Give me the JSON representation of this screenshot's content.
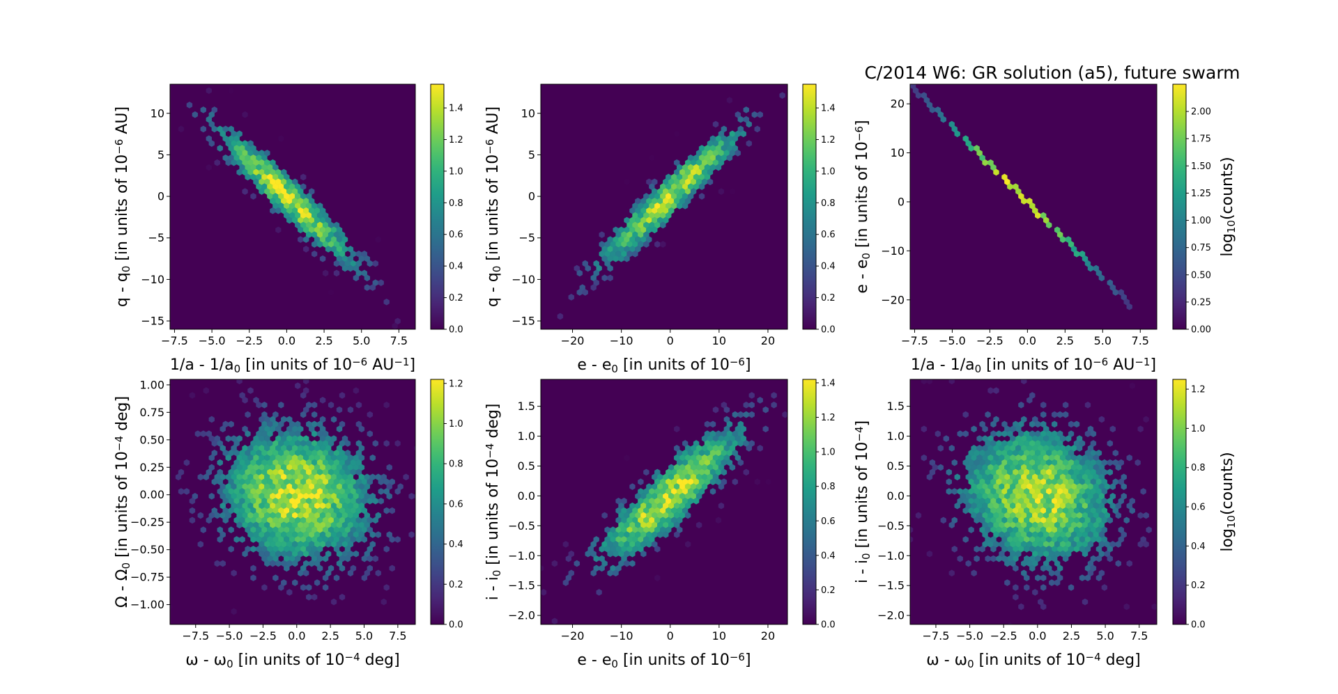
{
  "figure_title": "C/2014 W6: GR solution (a5),  future swarm",
  "colormap": "viridis",
  "background_color": "#440154",
  "chart_data": [
    {
      "type": "heatmap",
      "subtype": "hexbin",
      "xlabel": {
        "main": "1/a - 1/a",
        "sub": "0",
        "tail": " [in units of 10",
        "sup": "−6",
        "end": " AU",
        "sup2": "−1",
        "close": "]"
      },
      "ylabel": {
        "main": "q - q",
        "sub": "0",
        "tail": " [in units of 10",
        "sup": "−6",
        "end": " AU]"
      },
      "xlim": [
        -7.8,
        8.6
      ],
      "ylim": [
        -16.0,
        13.5
      ],
      "xticks": [
        {
          "v": -7.5,
          "label": "−7.5"
        },
        {
          "v": -5.0,
          "label": "−5.0"
        },
        {
          "v": -2.5,
          "label": "−2.5"
        },
        {
          "v": 0,
          "label": "0.0"
        },
        {
          "v": 2.5,
          "label": "2.5"
        },
        {
          "v": 5.0,
          "label": "5.0"
        },
        {
          "v": 7.5,
          "label": "7.5"
        }
      ],
      "yticks": [
        {
          "v": -15,
          "label": "−15"
        },
        {
          "v": -10,
          "label": "−10"
        },
        {
          "v": -5,
          "label": "−5"
        },
        {
          "v": 0,
          "label": "0"
        },
        {
          "v": 5,
          "label": "5"
        },
        {
          "v": 10,
          "label": "10"
        }
      ],
      "distribution": {
        "sx": 2.6,
        "sy": 4.6,
        "rho": -0.95,
        "peak": 1.5
      },
      "colorbar": {
        "label": "",
        "range": [
          0,
          1.55
        ],
        "ticks": [
          {
            "v": 0,
            "label": "0.0"
          },
          {
            "v": 0.2,
            "label": "0.2"
          },
          {
            "v": 0.4,
            "label": "0.4"
          },
          {
            "v": 0.6,
            "label": "0.6"
          },
          {
            "v": 0.8,
            "label": "0.8"
          },
          {
            "v": 1.0,
            "label": "1.0"
          },
          {
            "v": 1.2,
            "label": "1.2"
          },
          {
            "v": 1.4,
            "label": "1.4"
          }
        ]
      }
    },
    {
      "type": "heatmap",
      "subtype": "hexbin",
      "xlabel": {
        "main": "e - e",
        "sub": "0",
        "tail": " [in units of 10",
        "sup": "−6",
        "end": "]"
      },
      "ylabel": {
        "main": "q - q",
        "sub": "0",
        "tail": " [in units of 10",
        "sup": "−6",
        "end": " AU]"
      },
      "xlim": [
        -26.5,
        24.0
      ],
      "ylim": [
        -16.0,
        13.5
      ],
      "xticks": [
        {
          "v": -20,
          "label": "−20"
        },
        {
          "v": -10,
          "label": "−10"
        },
        {
          "v": 0,
          "label": "0"
        },
        {
          "v": 10,
          "label": "10"
        },
        {
          "v": 20,
          "label": "20"
        }
      ],
      "yticks": [
        {
          "v": -15,
          "label": "−15"
        },
        {
          "v": -10,
          "label": "−10"
        },
        {
          "v": -5,
          "label": "−5"
        },
        {
          "v": 0,
          "label": "0"
        },
        {
          "v": 5,
          "label": "5"
        },
        {
          "v": 10,
          "label": "10"
        }
      ],
      "distribution": {
        "sx": 8.0,
        "sy": 4.6,
        "rho": 0.95,
        "peak": 1.5
      },
      "colorbar": {
        "label": "",
        "range": [
          0,
          1.55
        ],
        "ticks": [
          {
            "v": 0,
            "label": "0.0"
          },
          {
            "v": 0.2,
            "label": "0.2"
          },
          {
            "v": 0.4,
            "label": "0.4"
          },
          {
            "v": 0.6,
            "label": "0.6"
          },
          {
            "v": 0.8,
            "label": "0.8"
          },
          {
            "v": 1.0,
            "label": "1.0"
          },
          {
            "v": 1.2,
            "label": "1.2"
          },
          {
            "v": 1.4,
            "label": "1.4"
          }
        ]
      }
    },
    {
      "type": "heatmap",
      "subtype": "hexbin",
      "xlabel": {
        "main": "1/a - 1/a",
        "sub": "0",
        "tail": " [in units of 10",
        "sup": "−6",
        "end": " AU",
        "sup2": "−1",
        "close": "]"
      },
      "ylabel": {
        "main": "e - e",
        "sub": "0",
        "tail": " [in units of 10",
        "sup": "−6",
        "end": "]"
      },
      "xlim": [
        -7.8,
        8.6
      ],
      "ylim": [
        -26.0,
        24.0
      ],
      "xticks": [
        {
          "v": -7.5,
          "label": "−7.5"
        },
        {
          "v": -5.0,
          "label": "−5.0"
        },
        {
          "v": -2.5,
          "label": "−2.5"
        },
        {
          "v": 0,
          "label": "0.0"
        },
        {
          "v": 2.5,
          "label": "2.5"
        },
        {
          "v": 5.0,
          "label": "5.0"
        },
        {
          "v": 7.5,
          "label": "7.5"
        }
      ],
      "yticks": [
        {
          "v": -20,
          "label": "−20"
        },
        {
          "v": -10,
          "label": "−10"
        },
        {
          "v": 0,
          "label": "0"
        },
        {
          "v": 10,
          "label": "10"
        },
        {
          "v": 20,
          "label": "20"
        }
      ],
      "line": {
        "x": [
          -7.5,
          6.5
        ],
        "y": [
          23.0,
          -20.0
        ],
        "peak": 2.2
      },
      "colorbar": {
        "label": "log10(counts)",
        "label_main": "log",
        "label_sub": "10",
        "label_tail": "(counts)",
        "range": [
          0,
          2.25
        ],
        "ticks": [
          {
            "v": 0,
            "label": "0.00"
          },
          {
            "v": 0.25,
            "label": "0.25"
          },
          {
            "v": 0.5,
            "label": "0.50"
          },
          {
            "v": 0.75,
            "label": "0.75"
          },
          {
            "v": 1.0,
            "label": "1.00"
          },
          {
            "v": 1.25,
            "label": "1.25"
          },
          {
            "v": 1.5,
            "label": "1.50"
          },
          {
            "v": 1.75,
            "label": "1.75"
          },
          {
            "v": 2.0,
            "label": "2.00"
          }
        ]
      }
    },
    {
      "type": "heatmap",
      "subtype": "hexbin",
      "xlabel": {
        "main": "ω - ω",
        "sub": "0",
        "tail": " [in units of 10",
        "sup": "−4",
        "end": " deg]"
      },
      "ylabel": {
        "main": "Ω - Ω",
        "sub": "0",
        "tail": " [in units of 10",
        "sup": "−4",
        "end": " deg]"
      },
      "xlim": [
        -9.4,
        8.8
      ],
      "ylim": [
        -1.18,
        1.05
      ],
      "xticks": [
        {
          "v": -7.5,
          "label": "−7.5"
        },
        {
          "v": -5.0,
          "label": "−5.0"
        },
        {
          "v": -2.5,
          "label": "−2.5"
        },
        {
          "v": 0,
          "label": "0.0"
        },
        {
          "v": 2.5,
          "label": "2.5"
        },
        {
          "v": 5.0,
          "label": "5.0"
        },
        {
          "v": 7.5,
          "label": "7.5"
        }
      ],
      "yticks": [
        {
          "v": -1.0,
          "label": "−1.00"
        },
        {
          "v": -0.75,
          "label": "−0.75"
        },
        {
          "v": -0.5,
          "label": "−0.50"
        },
        {
          "v": -0.25,
          "label": "−0.25"
        },
        {
          "v": 0,
          "label": "0.00"
        },
        {
          "v": 0.25,
          "label": "0.25"
        },
        {
          "v": 0.5,
          "label": "0.50"
        },
        {
          "v": 0.75,
          "label": "0.75"
        },
        {
          "v": 1.0,
          "label": "1.00"
        }
      ],
      "distribution": {
        "sx": 3.0,
        "sy": 0.33,
        "rho": -0.1,
        "peak": 1.2
      },
      "colorbar": {
        "label": "",
        "range": [
          0,
          1.22
        ],
        "ticks": [
          {
            "v": 0,
            "label": "0.0"
          },
          {
            "v": 0.2,
            "label": "0.2"
          },
          {
            "v": 0.4,
            "label": "0.4"
          },
          {
            "v": 0.6,
            "label": "0.6"
          },
          {
            "v": 0.8,
            "label": "0.8"
          },
          {
            "v": 1.0,
            "label": "1.0"
          },
          {
            "v": 1.2,
            "label": "1.2"
          }
        ]
      }
    },
    {
      "type": "heatmap",
      "subtype": "hexbin",
      "xlabel": {
        "main": "e - e",
        "sub": "0",
        "tail": " [in units of 10",
        "sup": "−6",
        "end": "]"
      },
      "ylabel": {
        "main": "i - i",
        "sub": "0",
        "tail": " [in units of 10",
        "sup": "−4",
        "end": " deg]"
      },
      "xlim": [
        -26.5,
        24.0
      ],
      "ylim": [
        -2.15,
        1.95
      ],
      "xticks": [
        {
          "v": -20,
          "label": "−20"
        },
        {
          "v": -10,
          "label": "−10"
        },
        {
          "v": 0,
          "label": "0"
        },
        {
          "v": 10,
          "label": "10"
        },
        {
          "v": 20,
          "label": "20"
        }
      ],
      "yticks": [
        {
          "v": -2.0,
          "label": "−2.0"
        },
        {
          "v": -1.5,
          "label": "−1.5"
        },
        {
          "v": -1.0,
          "label": "−1.0"
        },
        {
          "v": -0.5,
          "label": "−0.5"
        },
        {
          "v": 0,
          "label": "0.0"
        },
        {
          "v": 0.5,
          "label": "0.5"
        },
        {
          "v": 1.0,
          "label": "1.0"
        },
        {
          "v": 1.5,
          "label": "1.5"
        }
      ],
      "distribution": {
        "sx": 8.0,
        "sy": 0.62,
        "rho": 0.88,
        "peak": 1.4
      },
      "colorbar": {
        "label": "",
        "range": [
          0,
          1.42
        ],
        "ticks": [
          {
            "v": 0,
            "label": "0.0"
          },
          {
            "v": 0.2,
            "label": "0.2"
          },
          {
            "v": 0.4,
            "label": "0.4"
          },
          {
            "v": 0.6,
            "label": "0.6"
          },
          {
            "v": 0.8,
            "label": "0.8"
          },
          {
            "v": 1.0,
            "label": "1.0"
          },
          {
            "v": 1.2,
            "label": "1.2"
          },
          {
            "v": 1.4,
            "label": "1.4"
          }
        ]
      }
    },
    {
      "type": "heatmap",
      "subtype": "hexbin",
      "xlabel": {
        "main": "ω - ω",
        "sub": "0",
        "tail": " [in units of 10",
        "sup": "−4",
        "end": " deg]"
      },
      "ylabel": {
        "main": "i - i",
        "sub": "0",
        "tail": " [in units of 10",
        "sup": "−4",
        "end": "]"
      },
      "xlim": [
        -9.4,
        8.8
      ],
      "ylim": [
        -2.15,
        1.95
      ],
      "xticks": [
        {
          "v": -7.5,
          "label": "−7.5"
        },
        {
          "v": -5.0,
          "label": "−5.0"
        },
        {
          "v": -2.5,
          "label": "−2.5"
        },
        {
          "v": 0,
          "label": "0.0"
        },
        {
          "v": 2.5,
          "label": "2.5"
        },
        {
          "v": 5.0,
          "label": "5.0"
        },
        {
          "v": 7.5,
          "label": "7.5"
        }
      ],
      "yticks": [
        {
          "v": -2.0,
          "label": "−2.0"
        },
        {
          "v": -1.5,
          "label": "−1.5"
        },
        {
          "v": -1.0,
          "label": "−1.0"
        },
        {
          "v": -0.5,
          "label": "−0.5"
        },
        {
          "v": 0,
          "label": "0.0"
        },
        {
          "v": 0.5,
          "label": "0.5"
        },
        {
          "v": 1.0,
          "label": "1.0"
        },
        {
          "v": 1.5,
          "label": "1.5"
        }
      ],
      "distribution": {
        "sx": 3.0,
        "sy": 0.62,
        "rho": -0.15,
        "peak": 1.2
      },
      "colorbar": {
        "label": "log10(counts)",
        "label_main": "log",
        "label_sub": "10",
        "label_tail": "(counts)",
        "range": [
          0,
          1.25
        ],
        "ticks": [
          {
            "v": 0,
            "label": "0.0"
          },
          {
            "v": 0.2,
            "label": "0.2"
          },
          {
            "v": 0.4,
            "label": "0.4"
          },
          {
            "v": 0.6,
            "label": "0.6"
          },
          {
            "v": 0.8,
            "label": "0.8"
          },
          {
            "v": 1.0,
            "label": "1.0"
          },
          {
            "v": 1.2,
            "label": "1.2"
          }
        ]
      }
    }
  ]
}
